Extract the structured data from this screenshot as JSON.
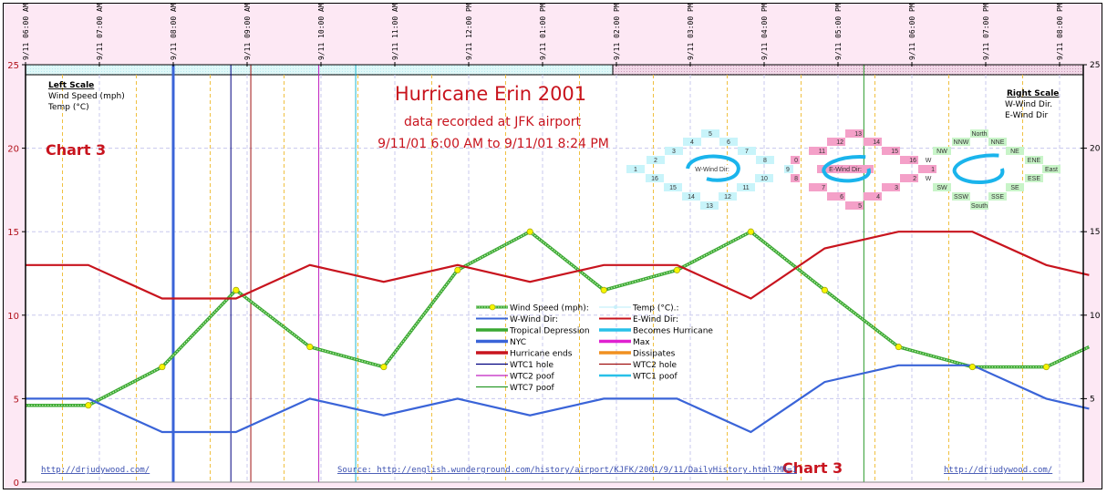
{
  "chart_data": {
    "type": "line",
    "title": "Hurricane Erin 2001",
    "subtitle": "data recorded at JFK airport",
    "date_range": "9/11/01 6:00 AM to 9/11/01 8:24 PM",
    "chart_label": "Chart 3",
    "x_ticks": [
      "9/11 06:00 AM",
      "9/11 07:00 AM",
      "9/11 08:00 AM",
      "9/11 09:00 AM",
      "9/11 10:00 AM",
      "9/11 11:00 AM",
      "9/11 12:00 PM",
      "9/11 01:00 PM",
      "9/11 02:00 PM",
      "9/11 03:00 PM",
      "9/11 04:00 PM",
      "9/11 05:00 PM",
      "9/11 06:00 PM",
      "9/11 07:00 PM",
      "9/11 08:00 PM"
    ],
    "x_hours_range": [
      6,
      20.4
    ],
    "ylim": [
      0,
      25
    ],
    "left_ticks": [
      "0",
      "5",
      "10",
      "15",
      "20",
      "25"
    ],
    "right_ticks": [
      "5",
      "10",
      "15",
      "20",
      "25"
    ],
    "x_hours": [
      6.0,
      6.85,
      7.85,
      8.85,
      9.85,
      10.85,
      11.85,
      12.83,
      13.83,
      14.82,
      15.82,
      16.82,
      17.82,
      18.82,
      19.82,
      20.4
    ],
    "series": [
      {
        "name": "Wind Speed (mph):",
        "color": "#3aa832",
        "marker": "#f5f500",
        "values": [
          4.6,
          4.6,
          6.9,
          11.5,
          8.1,
          6.9,
          12.7,
          15.0,
          11.5,
          12.7,
          15.0,
          11.5,
          8.1,
          6.9,
          6.9,
          8.1
        ]
      },
      {
        "name": "E-Wind Dir:",
        "color": "#c8141e",
        "values": [
          13,
          13,
          11,
          11,
          13,
          12,
          13,
          12,
          13,
          13,
          11,
          14,
          15,
          15,
          13,
          12.4
        ]
      },
      {
        "name": "W-Wind Dir:",
        "color": "#3a64d8",
        "values": [
          5,
          5,
          3,
          3,
          5,
          4,
          5,
          4,
          5,
          5,
          3,
          6,
          7,
          7,
          5,
          4.4
        ]
      }
    ],
    "event_lines": [
      {
        "name": "NYC",
        "hour": 8.0,
        "color": "#3a64d8",
        "width": 3
      },
      {
        "name": "WTC1 hole",
        "hour": 8.78,
        "color": "#000080",
        "width": 1
      },
      {
        "name": "WTC2 hole",
        "hour": 9.05,
        "color": "#a01010",
        "width": 1
      },
      {
        "name": "WTC2 poof",
        "hour": 9.97,
        "color": "#c020c0",
        "width": 1
      },
      {
        "name": "WTC1 poof",
        "hour": 10.47,
        "color": "#20b8d0",
        "width": 1
      },
      {
        "name": "WTC7 poof",
        "hour": 17.35,
        "color": "#2a9a2a",
        "width": 1
      }
    ],
    "left_scale": {
      "heading": "Left Scale",
      "items": [
        "Wind Speed (mph)",
        "Temp (°C)"
      ]
    },
    "right_scale": {
      "heading": "Right Scale",
      "items": [
        "W-Wind Dir.",
        "E-Wind Dir"
      ]
    },
    "legend": {
      "position": "center",
      "items": [
        {
          "label": "Wind Speed (mph):",
          "color": "#3aa832",
          "style": "dotted-marker"
        },
        {
          "label": "Temp (°C).:",
          "color": "#c8f0fa",
          "style": "thin-marker"
        },
        {
          "label": "W-Wind Dir:",
          "color": "#3a64d8",
          "style": "line"
        },
        {
          "label": "E-Wind Dir:",
          "color": "#c8141e",
          "style": "line"
        },
        {
          "label": "Tropical Depression",
          "color": "#3aa832",
          "style": "thick"
        },
        {
          "label": "Becomes Hurricane",
          "color": "#28c0e8",
          "style": "thick"
        },
        {
          "label": "NYC",
          "color": "#3a64d8",
          "style": "thick"
        },
        {
          "label": "Max",
          "color": "#e020d0",
          "style": "thick"
        },
        {
          "label": "Hurricane ends",
          "color": "#c8141e",
          "style": "thick"
        },
        {
          "label": "Dissipates",
          "color": "#f09020",
          "style": "thick"
        },
        {
          "label": "WTC1 hole",
          "color": "#000080",
          "style": "thin"
        },
        {
          "label": "WTC2 hole",
          "color": "#a01010",
          "style": "thin"
        },
        {
          "label": "WTC2 poof",
          "color": "#c020c0",
          "style": "thin"
        },
        {
          "label": "WTC1 poof",
          "color": "#28c0e8",
          "style": "medium"
        },
        {
          "label": "WTC7 poof",
          "color": "#2a9a2a",
          "style": "thin"
        }
      ]
    },
    "compass_w": {
      "label": "W-Wind Dir:",
      "cells": [
        "1",
        "2",
        "3",
        "4",
        "5",
        "6",
        "7",
        "8",
        "16",
        "15",
        "14",
        "13",
        "12",
        "11",
        "10"
      ],
      "color": "#c8f4fa"
    },
    "compass_e": {
      "label": "E-Wind Dir:",
      "cells": [
        "0",
        "9",
        "8",
        "7",
        "6",
        "5",
        "4",
        "3",
        "2",
        "1",
        "16",
        "15",
        "14",
        "13",
        "12",
        "11"
      ],
      "color": "#f4a0c8"
    },
    "compass_dir": {
      "cells": [
        "North",
        "NNW",
        "NNE",
        "NW",
        "NE",
        "W",
        "ENE",
        "East",
        "W",
        "ESE",
        "SW",
        "SE",
        "SSW",
        "SSE",
        "South"
      ],
      "color": "#c8f4c8"
    },
    "source_text": "Source: http://english.wunderground.com/history/airport/KJFK/2001/9/11/DailyHistory.html?MR=1",
    "site_left": "http://drjudywood.com/",
    "site_right": "http://drjudywood.com/"
  }
}
